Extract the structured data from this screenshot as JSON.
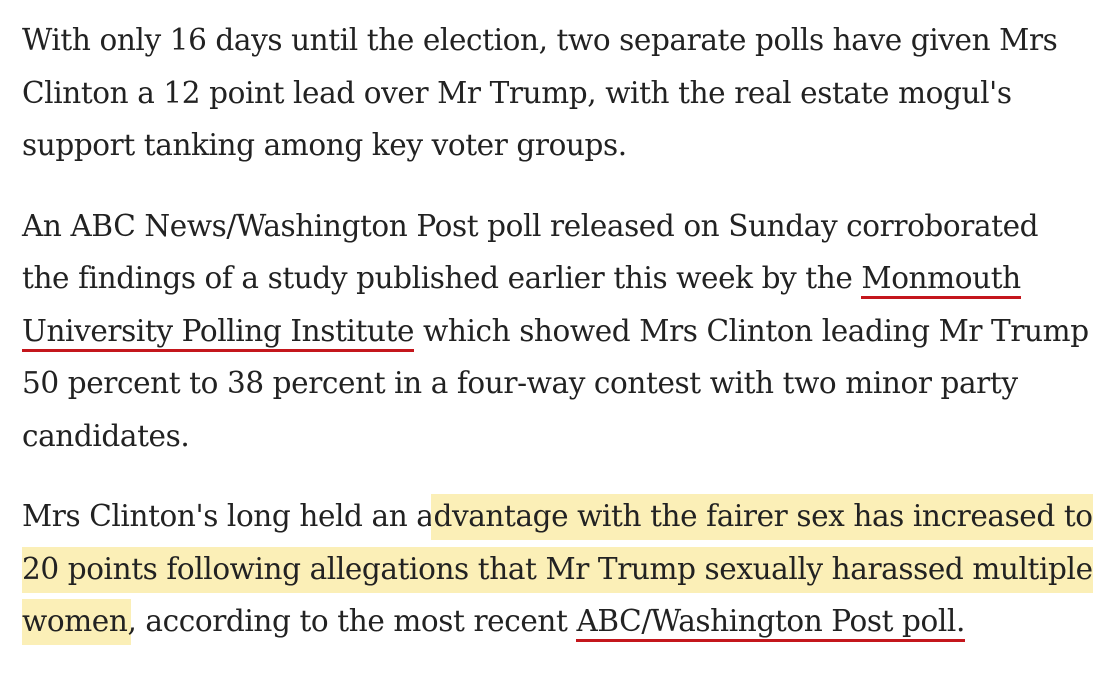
{
  "article": {
    "paragraph1": {
      "text": "With only 16 days until the election, two separate polls have given Mrs Clinton a 12 point lead over Mr Trump, with the real estate mogul's support tanking among key voter groups."
    },
    "paragraph2": {
      "before_link": "An ABC News/Washington Post poll released on Sunday corroborated the findings of a study published earlier this week by the ",
      "link": "Monmouth University Polling Institute",
      "after_link": " which showed Mrs Clinton leading Mr Trump 50 percent to 38 percent in a four-way contest with two minor party candidates."
    },
    "paragraph3": {
      "before_highlight": "Mrs Clinton's long held an a",
      "highlight": "dvantage with the fairer sex has increased to 20 points following allegations that Mr Trump sexually harassed multiple women",
      "after_highlight": ", according to the most recent ",
      "link": "ABC/Washington Post poll."
    }
  },
  "colors": {
    "text": "#222222",
    "link_underline": "#c4161c",
    "highlight": "#fbefb7",
    "background": "#ffffff"
  }
}
